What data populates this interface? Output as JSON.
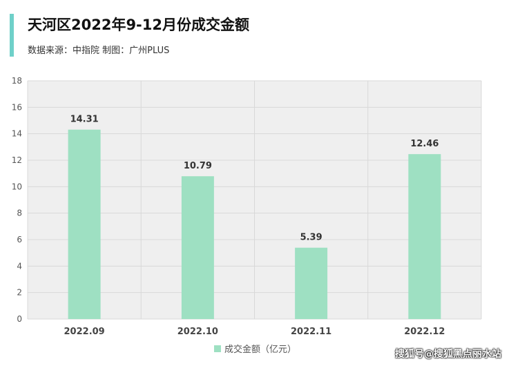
{
  "header": {
    "title": "天河区2022年9-12月份成交金额",
    "subtitle": "数据来源：中指院  制图：广州PLUS"
  },
  "watermark": "搜狐号@搜狐黑点丽水站",
  "colors": {
    "accent": "#6fd0c9",
    "bar": "#9ee0c2",
    "plot_bg": "#efefef",
    "grid": "#d8d8d8"
  },
  "chart_data": {
    "type": "bar",
    "categories": [
      "2022.09",
      "2022.10",
      "2022.11",
      "2022.12"
    ],
    "series": [
      {
        "name": "成交金额（亿元）",
        "values": [
          14.31,
          10.79,
          5.39,
          12.46
        ]
      }
    ],
    "ylim": [
      0,
      18
    ],
    "yticks": [
      0,
      2,
      4,
      6,
      8,
      10,
      12,
      14,
      16,
      18
    ],
    "data_labels": [
      "14.31",
      "10.79",
      "5.39",
      "12.46"
    ],
    "legend_position": "bottom-center",
    "grid": true
  }
}
